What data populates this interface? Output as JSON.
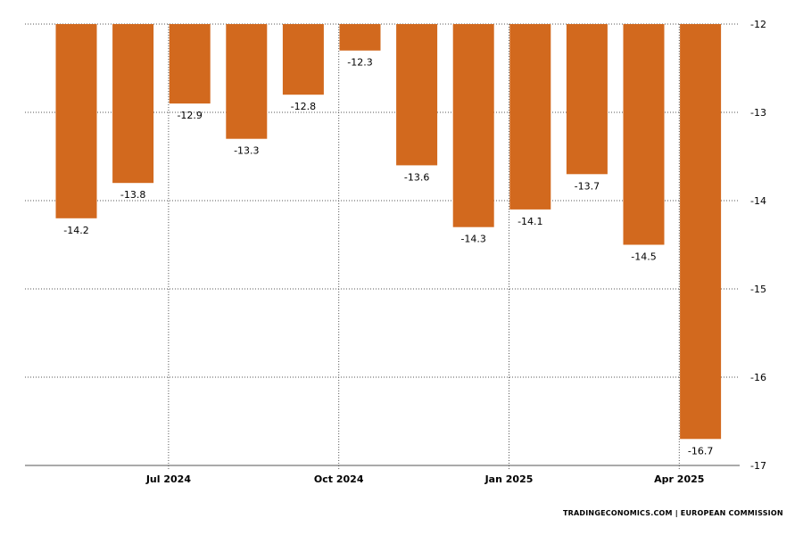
{
  "chart_data": {
    "type": "bar",
    "categories": [
      "May 2024",
      "Jun 2024",
      "Jul 2024",
      "Aug 2024",
      "Sep 2024",
      "Oct 2024",
      "Nov 2024",
      "Dec 2024",
      "Jan 2025",
      "Feb 2025",
      "Mar 2025",
      "Apr 2025"
    ],
    "values": [
      -14.2,
      -13.8,
      -12.9,
      -13.3,
      -12.8,
      -12.3,
      -13.6,
      -14.3,
      -14.1,
      -13.7,
      -14.5,
      -16.7
    ],
    "data_labels": [
      "-14.2",
      "-13.8",
      "-12.9",
      "-13.3",
      "-12.8",
      "-12.3",
      "-13.6",
      "-14.3",
      "-14.1",
      "-13.7",
      "-14.5",
      "-16.7"
    ],
    "x_tick_labels": [
      "Jul 2024",
      "Oct 2024",
      "Jan 2025",
      "Apr 2025"
    ],
    "x_tick_categories": [
      "Jul 2024",
      "Oct 2024",
      "Jan 2025",
      "Apr 2025"
    ],
    "y_ticks": [
      -12,
      -13,
      -14,
      -15,
      -16,
      -17
    ],
    "ylim": [
      -17,
      -12
    ],
    "y_axis_side": "right",
    "grid": "dotted",
    "bar_color": "#d2691e",
    "title": "",
    "xlabel": "",
    "ylabel": ""
  },
  "source_text": "TRADINGECONOMICS.COM  |  EUROPEAN COMMISSION"
}
